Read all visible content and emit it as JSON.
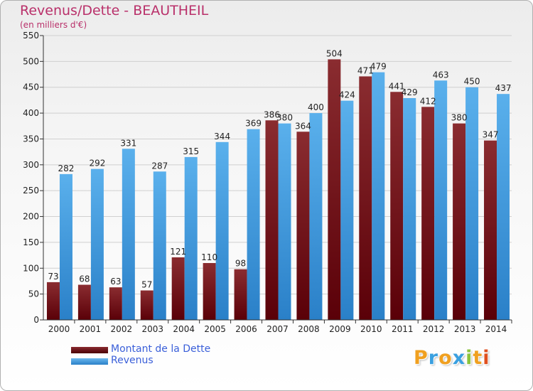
{
  "chart_data": {
    "type": "bar",
    "title": "Revenus/Dette - BEAUTHEIL",
    "subtitle": "(en milliers d'€)",
    "categories": [
      "2000",
      "2001",
      "2002",
      "2003",
      "2004",
      "2005",
      "2006",
      "2007",
      "2008",
      "2009",
      "2010",
      "2011",
      "2012",
      "2013",
      "2014"
    ],
    "series": [
      {
        "name": "Montant de la Dette",
        "color": "#7a1a1e",
        "values": [
          73,
          68,
          63,
          57,
          121,
          110,
          98,
          386,
          364,
          504,
          471,
          441,
          412,
          380,
          347
        ],
        "labels": [
          "73",
          "68",
          "63",
          "57",
          "121",
          "110",
          "98",
          "386",
          "364",
          "504",
          "471",
          "441",
          "412",
          "380",
          "347"
        ]
      },
      {
        "name": "Revenus",
        "color": "#3f9be0",
        "values": [
          282,
          292,
          331,
          287,
          315,
          344,
          369,
          380,
          400,
          424,
          479,
          429,
          463,
          450,
          437
        ],
        "labels": [
          "282",
          "292",
          "331",
          "287",
          "315",
          "344",
          "369",
          "380",
          "400",
          "424",
          "479",
          "429",
          "463",
          "450",
          "437"
        ]
      }
    ],
    "ylim": [
      0,
      550
    ],
    "yticks": [
      0,
      50,
      100,
      150,
      200,
      250,
      300,
      350,
      400,
      450,
      500,
      550
    ],
    "grid": true,
    "legend_position": "bottom-left"
  },
  "logo": {
    "text": "Proxiti",
    "letters": [
      {
        "ch": "P",
        "color": "#f0a020"
      },
      {
        "ch": "r",
        "color": "#3aa0e0"
      },
      {
        "ch": "o",
        "color": "#f0a020"
      },
      {
        "ch": "x",
        "color": "#3aa0e0"
      },
      {
        "ch": "i",
        "color": "#8cc43c"
      },
      {
        "ch": "t",
        "color": "#f0a020"
      },
      {
        "ch": "i",
        "color": "#e05020"
      }
    ]
  }
}
